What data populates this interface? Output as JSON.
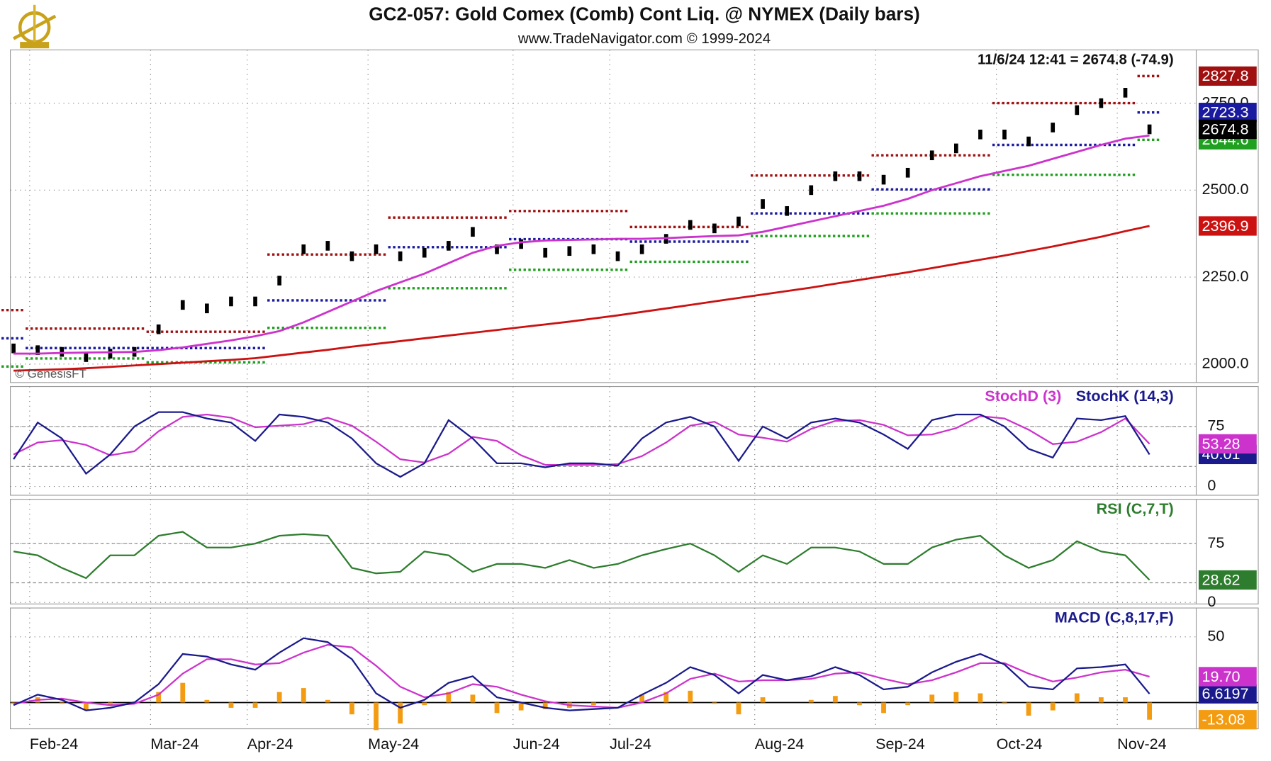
{
  "chart_data": [
    {
      "type": "line",
      "title": "GC2-057:  Gold Comex (Comb) Cont Liq. @ NYMEX  (Daily bars)",
      "subtitle": "www.TradeNavigator.com © 1999-2024",
      "annotation": "11/6/24 12:41 = 2674.8 (-74.9)",
      "watermark": "© GenesisFT",
      "ylim": [
        1947,
        2903
      ],
      "yticks": [
        {
          "value": 2000,
          "label": "2000.0"
        },
        {
          "value": 2250,
          "label": "2250.0"
        },
        {
          "value": 2500,
          "label": "2500.0"
        },
        {
          "value": 2750,
          "label": "2750.0"
        }
      ],
      "grid": true,
      "series": [
        {
          "kind": "candle",
          "color": "#000000",
          "label_box": true,
          "values": [
            2045,
            2040,
            2035,
            2020,
            2030,
            2035,
            2100,
            2170,
            2160,
            2180,
            2180,
            2240,
            2330,
            2340,
            2310,
            2330,
            2310,
            2320,
            2340,
            2380,
            2330,
            2345,
            2320,
            2325,
            2330,
            2310,
            2330,
            2360,
            2400,
            2390,
            2410,
            2460,
            2440,
            2500,
            2540,
            2540,
            2530,
            2550,
            2600,
            2620,
            2660,
            2660,
            2640,
            2680,
            2730,
            2750,
            2780,
            2674.8
          ]
        },
        {
          "kind": "line",
          "color": "#cc33cc",
          "values": [
            2030,
            2030,
            2032,
            2033,
            2034,
            2035,
            2040,
            2048,
            2058,
            2068,
            2080,
            2095,
            2120,
            2150,
            2180,
            2210,
            2235,
            2260,
            2290,
            2320,
            2340,
            2350,
            2355,
            2357,
            2358,
            2360,
            2360,
            2362,
            2365,
            2368,
            2370,
            2380,
            2395,
            2410,
            2425,
            2440,
            2455,
            2475,
            2500,
            2520,
            2540,
            2555,
            2570,
            2590,
            2610,
            2630,
            2648,
            2657
          ]
        },
        {
          "kind": "line",
          "color": "#cc1111",
          "label_box": true,
          "values": [
            1981,
            1983,
            1985,
            1988,
            1992,
            1996,
            2000,
            2004,
            2008,
            2012,
            2017,
            2025,
            2033,
            2041,
            2050,
            2058,
            2066,
            2074,
            2082,
            2090,
            2098,
            2106,
            2114,
            2122,
            2131,
            2140,
            2150,
            2160,
            2170,
            2180,
            2190,
            2200,
            2210,
            2220,
            2231,
            2242,
            2253,
            2264,
            2276,
            2288,
            2300,
            2312,
            2325,
            2338,
            2352,
            2366,
            2382,
            2396.9
          ]
        },
        {
          "kind": "level",
          "color": "#a01010",
          "label_box": true,
          "values": [
            2155,
            2102,
            2102,
            2102,
            2102,
            2102,
            2093,
            2093,
            2093,
            2093,
            2093,
            2315,
            2315,
            2315,
            2315,
            2315,
            2421,
            2421,
            2421,
            2421,
            2421,
            2440,
            2440,
            2440,
            2440,
            2440,
            2394,
            2394,
            2394,
            2394,
            2394,
            2542,
            2542,
            2542,
            2542,
            2542,
            2600,
            2600,
            2600,
            2600,
            2600,
            2750,
            2750,
            2750,
            2750,
            2750,
            2750,
            2827.8
          ]
        },
        {
          "kind": "level",
          "color": "#1a1aa0",
          "label_box": true,
          "values": [
            2074,
            2046,
            2046,
            2046,
            2046,
            2046,
            2046,
            2046,
            2046,
            2046,
            2046,
            2183,
            2183,
            2183,
            2183,
            2183,
            2336,
            2336,
            2336,
            2336,
            2336,
            2359,
            2359,
            2359,
            2359,
            2359,
            2352,
            2352,
            2352,
            2352,
            2352,
            2433,
            2433,
            2433,
            2433,
            2433,
            2502,
            2502,
            2502,
            2502,
            2502,
            2630,
            2630,
            2630,
            2630,
            2630,
            2630,
            2723.3
          ]
        },
        {
          "kind": "level",
          "color": "#20a020",
          "label_box": true,
          "values": [
            1993,
            2016,
            2016,
            2016,
            2016,
            2016,
            2005,
            2005,
            2005,
            2005,
            2005,
            2104,
            2104,
            2104,
            2104,
            2104,
            2218,
            2218,
            2218,
            2218,
            2218,
            2271,
            2271,
            2271,
            2271,
            2271,
            2294,
            2294,
            2294,
            2294,
            2294,
            2368,
            2368,
            2368,
            2368,
            2368,
            2433,
            2433,
            2433,
            2433,
            2433,
            2544,
            2544,
            2544,
            2544,
            2544,
            2544,
            2644.6
          ]
        }
      ]
    },
    {
      "type": "line",
      "ylim": [
        -11,
        125
      ],
      "yticks": [
        0,
        75
      ],
      "bands": [
        25,
        75
      ],
      "series": [
        {
          "name": "StochD (3)",
          "kind": "line",
          "color": "#cc33cc",
          "label_box": true,
          "values": [
            40,
            55,
            58,
            52,
            39,
            44,
            69,
            87,
            90,
            86,
            74,
            76,
            78,
            86,
            76,
            56,
            34,
            30,
            41,
            62,
            57,
            39,
            27,
            27,
            27,
            28,
            38,
            55,
            76,
            81,
            65,
            61,
            56,
            72,
            82,
            83,
            77,
            64,
            65,
            73,
            88,
            85,
            71,
            53,
            56,
            68,
            85,
            53.28
          ]
        },
        {
          "name": "StochK (14,3)",
          "kind": "line",
          "color": "#1a1a8c",
          "label_box": true,
          "values": [
            34,
            80,
            60,
            16,
            40,
            75,
            93,
            93,
            85,
            80,
            57,
            90,
            87,
            80,
            60,
            29,
            12,
            29,
            83,
            60,
            29,
            29,
            24,
            29,
            29,
            26,
            60,
            80,
            87,
            75,
            32,
            75,
            60,
            80,
            85,
            80,
            65,
            47,
            83,
            90,
            90,
            75,
            47,
            36,
            85,
            83,
            88,
            40.01
          ]
        }
      ]
    },
    {
      "type": "line",
      "ylim": [
        -2,
        131.5
      ],
      "yticks": [
        0,
        75
      ],
      "bands": [
        25,
        75
      ],
      "series": [
        {
          "name": "RSI (C,7,T)",
          "kind": "line",
          "color": "#2e7d2e",
          "label_box": true,
          "values": [
            65,
            60,
            44,
            31,
            60,
            60,
            85,
            90,
            70,
            70,
            75,
            85,
            87,
            85,
            44,
            37,
            39,
            65,
            60,
            39,
            49,
            49,
            44,
            54,
            44,
            49,
            60,
            68,
            75,
            60,
            39,
            60,
            49,
            70,
            70,
            65,
            49,
            49,
            70,
            80,
            85,
            60,
            44,
            54,
            78,
            65,
            60,
            28.62
          ]
        }
      ]
    },
    {
      "type": "line",
      "ylim": [
        -20,
        72
      ],
      "yticks": [
        50
      ],
      "zero_line": true,
      "categories": [
        null,
        "Feb-24",
        null,
        null,
        null,
        null,
        "Mar-24",
        null,
        null,
        null,
        "Apr-24",
        null,
        null,
        null,
        null,
        "May-24",
        null,
        null,
        null,
        null,
        null,
        "Jun-24",
        null,
        null,
        null,
        "Jul-24",
        null,
        null,
        null,
        null,
        null,
        "Aug-24",
        null,
        null,
        null,
        null,
        "Sep-24",
        null,
        null,
        null,
        null,
        "Oct-24",
        null,
        null,
        null,
        null,
        "Nov-24",
        null
      ],
      "series": [
        {
          "kind": "bar",
          "color": "#f39c12",
          "label_box": true,
          "values": [
            -1,
            4,
            -1,
            -6,
            -2,
            1,
            8,
            15,
            2,
            -4,
            -4,
            8,
            11,
            2,
            -9,
            -21,
            -16,
            -2,
            8,
            6,
            -8,
            -6,
            -5,
            -4,
            -2,
            0,
            6,
            8,
            9,
            -1,
            -9,
            4,
            0,
            2,
            5,
            -2,
            -8,
            -2,
            6,
            8,
            7,
            -1,
            -10,
            -6,
            7,
            4,
            4,
            -13.08
          ]
        },
        {
          "kind": "line",
          "color": "#cc33cc",
          "label_box": true,
          "values": [
            -1,
            2,
            3,
            0,
            -2,
            -1,
            6,
            22,
            33,
            33,
            29,
            30,
            38,
            44,
            42,
            28,
            12,
            4,
            7,
            14,
            12,
            6,
            1,
            -2,
            -3,
            -4,
            0,
            7,
            18,
            22,
            16,
            17,
            17,
            18,
            22,
            23,
            18,
            14,
            17,
            23,
            30,
            30,
            22,
            16,
            19,
            23,
            25,
            19.7
          ],
          "value_labels": [
            null,
            null,
            null,
            null,
            null,
            null,
            null,
            null,
            null,
            null,
            null,
            null,
            null,
            null,
            null,
            null,
            null,
            null,
            null,
            null,
            null,
            null,
            null,
            null,
            null,
            null,
            null,
            null,
            null,
            null,
            null,
            null,
            null,
            null,
            null,
            null,
            null,
            null,
            null,
            null,
            null,
            null,
            null,
            null,
            null,
            null,
            null,
            "19.70"
          ]
        },
        {
          "name": "MACD (C,8,17,F)",
          "kind": "line",
          "color": "#1a1a8c",
          "label_box": true,
          "values": [
            -2,
            6,
            2,
            -6,
            -4,
            0,
            14,
            37,
            35,
            29,
            25,
            38,
            49,
            46,
            33,
            7,
            -4,
            2,
            15,
            20,
            4,
            0,
            -4,
            -6,
            -5,
            -4,
            6,
            15,
            27,
            21,
            7,
            21,
            17,
            20,
            27,
            21,
            10,
            12,
            23,
            31,
            37,
            29,
            12,
            10,
            26,
            27,
            29,
            6.6197
          ]
        }
      ]
    }
  ]
}
